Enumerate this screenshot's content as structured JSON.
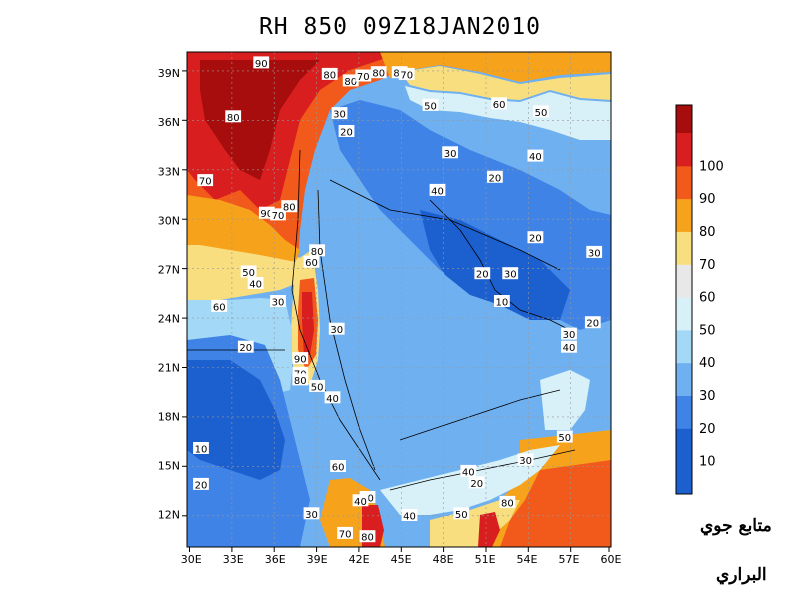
{
  "title": "RH 850 09Z18JAN2010",
  "map": {
    "x_ticks": [
      "30E",
      "33E",
      "36E",
      "39E",
      "42E",
      "45E",
      "48E",
      "51E",
      "54E",
      "57E",
      "60E"
    ],
    "y_ticks": [
      "39N",
      "36N",
      "33N",
      "30N",
      "27N",
      "24N",
      "21N",
      "18N",
      "15N",
      "12N"
    ],
    "contour_labels": [
      {
        "text": "90",
        "lon": 35.0,
        "lat": 39.6
      },
      {
        "text": "80",
        "lon": 39.9,
        "lat": 38.9
      },
      {
        "text": "80",
        "lon": 41.4,
        "lat": 38.5
      },
      {
        "text": "80",
        "lon": 43.4,
        "lat": 39.0
      },
      {
        "text": "70",
        "lon": 42.3,
        "lat": 38.8
      },
      {
        "text": "80",
        "lon": 44.9,
        "lat": 39.0
      },
      {
        "text": "70",
        "lon": 45.4,
        "lat": 38.9
      },
      {
        "text": "80",
        "lon": 33.0,
        "lat": 36.3
      },
      {
        "text": "30",
        "lon": 40.6,
        "lat": 36.5
      },
      {
        "text": "20",
        "lon": 41.1,
        "lat": 35.4
      },
      {
        "text": "50",
        "lon": 47.1,
        "lat": 37.0
      },
      {
        "text": "60",
        "lon": 52.0,
        "lat": 37.1
      },
      {
        "text": "50",
        "lon": 55.0,
        "lat": 36.6
      },
      {
        "text": "30",
        "lon": 48.5,
        "lat": 34.1
      },
      {
        "text": "40",
        "lon": 54.6,
        "lat": 33.9
      },
      {
        "text": "70",
        "lon": 31.0,
        "lat": 32.4
      },
      {
        "text": "20",
        "lon": 51.7,
        "lat": 32.6
      },
      {
        "text": "40",
        "lon": 47.6,
        "lat": 31.8
      },
      {
        "text": "90",
        "lon": 35.4,
        "lat": 30.4
      },
      {
        "text": "70",
        "lon": 36.2,
        "lat": 30.3
      },
      {
        "text": "80",
        "lon": 37.0,
        "lat": 30.8
      },
      {
        "text": "20",
        "lon": 54.6,
        "lat": 28.9
      },
      {
        "text": "30",
        "lon": 58.8,
        "lat": 28.0
      },
      {
        "text": "80",
        "lon": 39.0,
        "lat": 28.1
      },
      {
        "text": "60",
        "lon": 38.6,
        "lat": 27.4
      },
      {
        "text": "50",
        "lon": 34.1,
        "lat": 26.8
      },
      {
        "text": "40",
        "lon": 34.6,
        "lat": 26.1
      },
      {
        "text": "20",
        "lon": 50.8,
        "lat": 26.7
      },
      {
        "text": "30",
        "lon": 52.8,
        "lat": 26.7
      },
      {
        "text": "30",
        "lon": 36.2,
        "lat": 25.0
      },
      {
        "text": "10",
        "lon": 52.2,
        "lat": 25.0
      },
      {
        "text": "60",
        "lon": 32.0,
        "lat": 24.7
      },
      {
        "text": "20",
        "lon": 58.7,
        "lat": 23.7
      },
      {
        "text": "30",
        "lon": 40.4,
        "lat": 23.3
      },
      {
        "text": "30",
        "lon": 57.0,
        "lat": 23.0
      },
      {
        "text": "20",
        "lon": 33.9,
        "lat": 22.2
      },
      {
        "text": "40",
        "lon": 57.0,
        "lat": 22.2
      },
      {
        "text": "90",
        "lon": 37.8,
        "lat": 21.5
      },
      {
        "text": "70",
        "lon": 37.8,
        "lat": 20.6
      },
      {
        "text": "80",
        "lon": 37.8,
        "lat": 20.2
      },
      {
        "text": "50",
        "lon": 39.0,
        "lat": 19.8
      },
      {
        "text": "40",
        "lon": 40.1,
        "lat": 19.1
      },
      {
        "text": "10",
        "lon": 30.7,
        "lat": 16.0
      },
      {
        "text": "50",
        "lon": 56.7,
        "lat": 16.7
      },
      {
        "text": "30",
        "lon": 53.9,
        "lat": 15.3
      },
      {
        "text": "40",
        "lon": 49.8,
        "lat": 14.6
      },
      {
        "text": "20",
        "lon": 50.4,
        "lat": 13.9
      },
      {
        "text": "60",
        "lon": 40.5,
        "lat": 14.9
      },
      {
        "text": "20",
        "lon": 30.7,
        "lat": 13.8
      },
      {
        "text": "30",
        "lon": 42.6,
        "lat": 13.0
      },
      {
        "text": "40",
        "lon": 42.1,
        "lat": 12.8
      },
      {
        "text": "80",
        "lon": 52.6,
        "lat": 12.7
      },
      {
        "text": "50",
        "lon": 49.3,
        "lat": 12.0
      },
      {
        "text": "30",
        "lon": 38.6,
        "lat": 12.0
      },
      {
        "text": "40",
        "lon": 45.6,
        "lat": 11.9
      },
      {
        "text": "70",
        "lon": 41.0,
        "lat": 10.8
      },
      {
        "text": "80",
        "lon": 42.6,
        "lat": 10.6
      }
    ]
  },
  "colorbar": {
    "bins": [
      {
        "label": "",
        "color": "#1c5fcf"
      },
      {
        "label": "10",
        "color": "#1c5fcf"
      },
      {
        "label": "20",
        "color": "#3f83e6"
      },
      {
        "label": "30",
        "color": "#6fb0f0"
      },
      {
        "label": "40",
        "color": "#a3d8f6"
      },
      {
        "label": "50",
        "color": "#d8f1f8"
      },
      {
        "label": "60",
        "color": "#e8e8e8"
      },
      {
        "label": "70",
        "color": "#f8de7e"
      },
      {
        "label": "80",
        "color": "#f6a21b"
      },
      {
        "label": "90",
        "color": "#f25a1b"
      },
      {
        "label": "100",
        "color": "#d81e1e"
      }
    ],
    "top_color": "#a80d0d"
  },
  "credit": {
    "line1": "متابع جوي",
    "line2": "البراري"
  }
}
